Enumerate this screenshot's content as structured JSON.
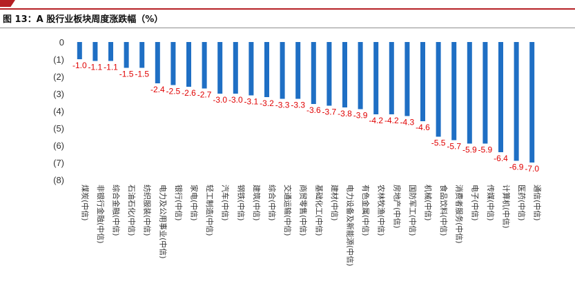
{
  "figure": {
    "title": "图 13：A 股行业板块周度涨跌幅（%）"
  },
  "colors": {
    "bar": "#1f6fc4",
    "label": "#e00000",
    "brand": "#b51f24"
  },
  "chart_data": {
    "type": "bar",
    "title": "A 股行业板块周度涨跌幅（%）",
    "xlabel": "",
    "ylabel": "",
    "ylim": [
      -8,
      0
    ],
    "yticks": [
      {
        "value": 0,
        "label": "0"
      },
      {
        "value": -1,
        "label": "(1)"
      },
      {
        "value": -2,
        "label": "(2)"
      },
      {
        "value": -3,
        "label": "(3)"
      },
      {
        "value": -4,
        "label": "(4)"
      },
      {
        "value": -5,
        "label": "(5)"
      },
      {
        "value": -6,
        "label": "(6)"
      },
      {
        "value": -7,
        "label": "(7)"
      },
      {
        "value": -8,
        "label": "(8)"
      }
    ],
    "categories": [
      "煤炭(中信)",
      "非银行金融(中信)",
      "综合金融(中信)",
      "石油石化(中信)",
      "纺织服装(中信)",
      "电力及公用事业(中信)",
      "银行(中信)",
      "家电(中信)",
      "轻工制造(中信)",
      "汽车(中信)",
      "钢铁(中信)",
      "建筑(中信)",
      "综合(中信)",
      "交通运输(中信)",
      "商贸零售(中信)",
      "基础化工(中信)",
      "建材(中信)",
      "电力设备及新能源(中信)",
      "有色金属(中信)",
      "农林牧渔(中信)",
      "房地产(中信)",
      "国防军工(中信)",
      "机械(中信)",
      "食品饮料(中信)",
      "消费者服务(中信)",
      "电子(中信)",
      "传媒(中信)",
      "计算机(中信)",
      "医药(中信)",
      "通信(中信)"
    ],
    "values": [
      -1.0,
      -1.1,
      -1.1,
      -1.5,
      -1.5,
      -2.4,
      -2.5,
      -2.6,
      -2.7,
      -3.0,
      -3.0,
      -3.1,
      -3.2,
      -3.3,
      -3.3,
      -3.6,
      -3.7,
      -3.8,
      -3.9,
      -4.2,
      -4.2,
      -4.3,
      -4.6,
      -5.5,
      -5.7,
      -5.9,
      -5.9,
      -6.4,
      -6.9,
      -7.0
    ],
    "value_labels": [
      "-1.0",
      "-1.1",
      "-1.1",
      "-1.5",
      "-1.5",
      "-2.4",
      "-2.5",
      "-2.6",
      "-2.7",
      "-3.0",
      "-3.0",
      "-3.1",
      "-3.2",
      "-3.3",
      "-3.3",
      "-3.6",
      "-3.7",
      "-3.8",
      "-3.9",
      "-4.2",
      "-4.2",
      "-4.3",
      "-4.6",
      "-5.5",
      "-5.7",
      "-5.9",
      "-5.9",
      "-6.4",
      "-6.9",
      "-7.0"
    ]
  }
}
